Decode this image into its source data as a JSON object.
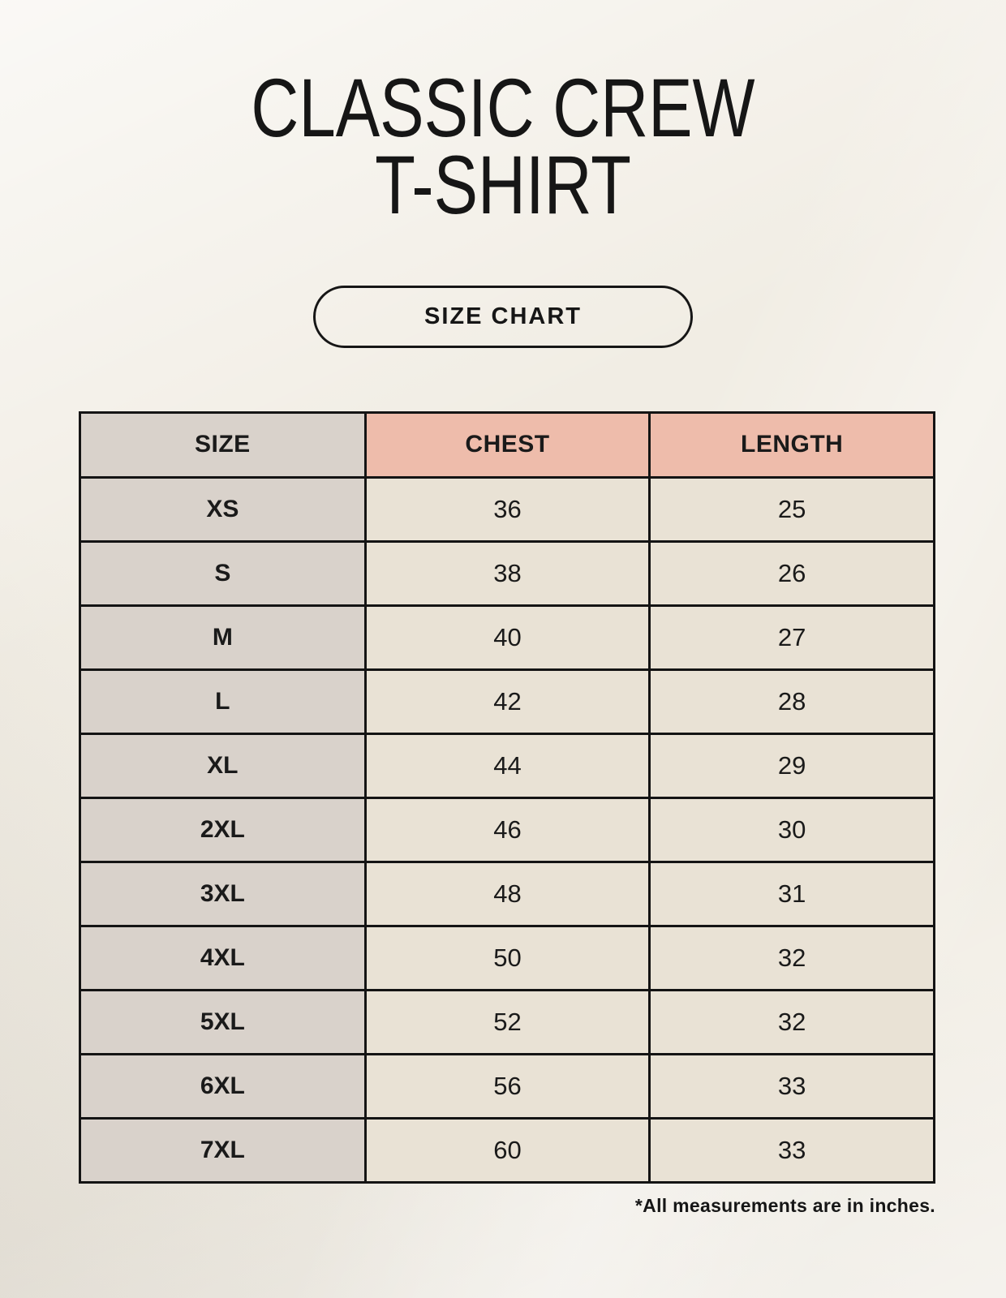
{
  "page": {
    "title_line1": "CLASSIC CREW",
    "title_line2": "T-SHIRT",
    "size_chart_button_label": "SIZE CHART",
    "footnote": "*All measurements are in inches."
  },
  "table": {
    "headers": [
      "SIZE",
      "CHEST",
      "LENGTH"
    ],
    "rows": [
      {
        "size": "XS",
        "chest": "36",
        "length": "25"
      },
      {
        "size": "S",
        "chest": "38",
        "length": "26"
      },
      {
        "size": "M",
        "chest": "40",
        "length": "27"
      },
      {
        "size": "L",
        "chest": "42",
        "length": "28"
      },
      {
        "size": "XL",
        "chest": "44",
        "length": "29"
      },
      {
        "size": "2XL",
        "chest": "46",
        "length": "30"
      },
      {
        "size": "3XL",
        "chest": "48",
        "length": "31"
      },
      {
        "size": "4XL",
        "chest": "50",
        "length": "32"
      },
      {
        "size": "5XL",
        "chest": "52",
        "length": "32"
      },
      {
        "size": "6XL",
        "chest": "56",
        "length": "33"
      },
      {
        "size": "7XL",
        "chest": "60",
        "length": "33"
      }
    ],
    "units": "inches"
  },
  "colors": {
    "background": "#f1ede4",
    "header_accent": "#eebcab",
    "size_column": "#d9d2cb",
    "data_cell": "#e9e2d5",
    "border": "#141414",
    "text": "#161616"
  }
}
